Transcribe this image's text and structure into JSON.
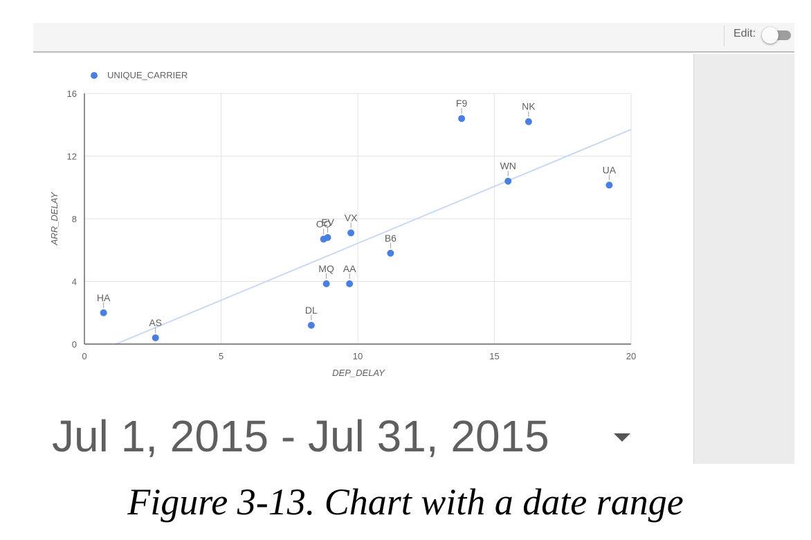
{
  "toolbar": {
    "edit_label": "Edit:",
    "edit_toggle_on": false
  },
  "chart_data": {
    "type": "scatter",
    "legend": {
      "label": "UNIQUE_CARRIER",
      "position": "top-left"
    },
    "xlabel": "DEP_DELAY",
    "ylabel": "ARR_DELAY",
    "xlim": [
      0,
      20
    ],
    "ylim": [
      0,
      16
    ],
    "x_ticks": [
      0,
      5,
      10,
      15,
      20
    ],
    "y_ticks": [
      0,
      4,
      8,
      12,
      16
    ],
    "grid": true,
    "series_color": "#4a7fe0",
    "trendline_color": "#c9d8f5",
    "points": [
      {
        "label": "HA",
        "x": 0.7,
        "y": 2.0
      },
      {
        "label": "AS",
        "x": 2.6,
        "y": 0.4
      },
      {
        "label": "DL",
        "x": 8.3,
        "y": 1.2
      },
      {
        "label": "OO",
        "x": 8.75,
        "y": 6.7
      },
      {
        "label": "EV",
        "x": 8.9,
        "y": 6.8
      },
      {
        "label": "MQ",
        "x": 8.85,
        "y": 3.85
      },
      {
        "label": "AA",
        "x": 9.7,
        "y": 3.85
      },
      {
        "label": "VX",
        "x": 9.75,
        "y": 7.1
      },
      {
        "label": "B6",
        "x": 11.2,
        "y": 5.8
      },
      {
        "label": "F9",
        "x": 13.8,
        "y": 14.4
      },
      {
        "label": "NK",
        "x": 16.25,
        "y": 14.2
      },
      {
        "label": "WN",
        "x": 15.5,
        "y": 10.4
      },
      {
        "label": "UA",
        "x": 19.2,
        "y": 10.15
      }
    ],
    "trendline": {
      "x": [
        1.15,
        20
      ],
      "y": [
        0,
        13.7
      ]
    }
  },
  "date_range": {
    "text": "Jul 1, 2015 - Jul 31, 2015"
  },
  "caption": "Figure 3-13. Chart with a date range"
}
